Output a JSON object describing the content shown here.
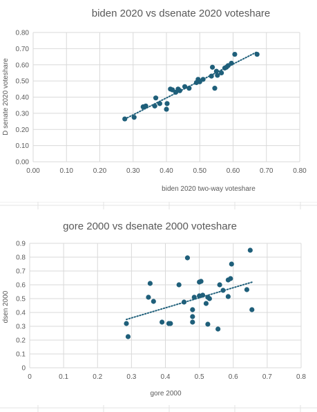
{
  "colors": {
    "marker": "#1F5F7A",
    "trendline": "#1F5F7A",
    "gridline": "#D9D9D9",
    "text": "#595959"
  },
  "chart_data": [
    {
      "type": "scatter",
      "title": "biden 2020 vs dsenate 2020 voteshare",
      "xlabel": "biden 2020 two-way voteshare",
      "ylabel": "D senate 2020 voteshare",
      "xlim": [
        0,
        0.8
      ],
      "ylim": [
        0,
        0.8
      ],
      "x_ticks": [
        "0.00",
        "0.10",
        "0.20",
        "0.30",
        "0.40",
        "0.50",
        "0.60",
        "0.70",
        "0.80"
      ],
      "y_ticks": [
        "0.00",
        "0.10",
        "0.20",
        "0.30",
        "0.40",
        "0.50",
        "0.60",
        "0.70",
        "0.80"
      ],
      "grid": "vertical and horizontal",
      "trendline": "linear",
      "points": [
        [
          0.275,
          0.265
        ],
        [
          0.303,
          0.275
        ],
        [
          0.33,
          0.34
        ],
        [
          0.338,
          0.345
        ],
        [
          0.365,
          0.345
        ],
        [
          0.368,
          0.395
        ],
        [
          0.38,
          0.36
        ],
        [
          0.4,
          0.325
        ],
        [
          0.402,
          0.36
        ],
        [
          0.412,
          0.45
        ],
        [
          0.418,
          0.445
        ],
        [
          0.428,
          0.43
        ],
        [
          0.435,
          0.45
        ],
        [
          0.44,
          0.44
        ],
        [
          0.455,
          0.465
        ],
        [
          0.468,
          0.455
        ],
        [
          0.49,
          0.49
        ],
        [
          0.495,
          0.51
        ],
        [
          0.5,
          0.495
        ],
        [
          0.51,
          0.51
        ],
        [
          0.535,
          0.53
        ],
        [
          0.538,
          0.585
        ],
        [
          0.545,
          0.455
        ],
        [
          0.55,
          0.56
        ],
        [
          0.553,
          0.535
        ],
        [
          0.565,
          0.55
        ],
        [
          0.575,
          0.58
        ],
        [
          0.58,
          0.585
        ],
        [
          0.585,
          0.595
        ],
        [
          0.595,
          0.61
        ],
        [
          0.605,
          0.665
        ],
        [
          0.672,
          0.665
        ]
      ]
    },
    {
      "type": "scatter",
      "title": "gore 2000 vs dsenate 2000 voteshare",
      "xlabel": "gore 2000",
      "ylabel": "dsen 2000",
      "xlim": [
        0,
        0.8
      ],
      "ylim": [
        0,
        0.9
      ],
      "x_ticks": [
        "0",
        "0.1",
        "0.2",
        "0.3",
        "0.4",
        "0.5",
        "0.6",
        "0.7",
        "0.8"
      ],
      "y_ticks": [
        "0",
        "0.1",
        "0.2",
        "0.3",
        "0.4",
        "0.5",
        "0.6",
        "0.7",
        "0.8",
        "0.9"
      ],
      "grid": "vertical and horizontal",
      "trendline": "linear",
      "points": [
        [
          0.285,
          0.32
        ],
        [
          0.29,
          0.225
        ],
        [
          0.35,
          0.51
        ],
        [
          0.355,
          0.61
        ],
        [
          0.365,
          0.48
        ],
        [
          0.39,
          0.33
        ],
        [
          0.41,
          0.32
        ],
        [
          0.415,
          0.32
        ],
        [
          0.44,
          0.6
        ],
        [
          0.455,
          0.475
        ],
        [
          0.465,
          0.795
        ],
        [
          0.48,
          0.42
        ],
        [
          0.48,
          0.37
        ],
        [
          0.48,
          0.33
        ],
        [
          0.485,
          0.51
        ],
        [
          0.5,
          0.62
        ],
        [
          0.505,
          0.625
        ],
        [
          0.5,
          0.52
        ],
        [
          0.51,
          0.525
        ],
        [
          0.52,
          0.465
        ],
        [
          0.525,
          0.51
        ],
        [
          0.525,
          0.315
        ],
        [
          0.53,
          0.5
        ],
        [
          0.555,
          0.28
        ],
        [
          0.56,
          0.6
        ],
        [
          0.57,
          0.56
        ],
        [
          0.585,
          0.515
        ],
        [
          0.585,
          0.635
        ],
        [
          0.592,
          0.645
        ],
        [
          0.595,
          0.75
        ],
        [
          0.64,
          0.565
        ],
        [
          0.65,
          0.85
        ],
        [
          0.655,
          0.42
        ]
      ]
    }
  ]
}
